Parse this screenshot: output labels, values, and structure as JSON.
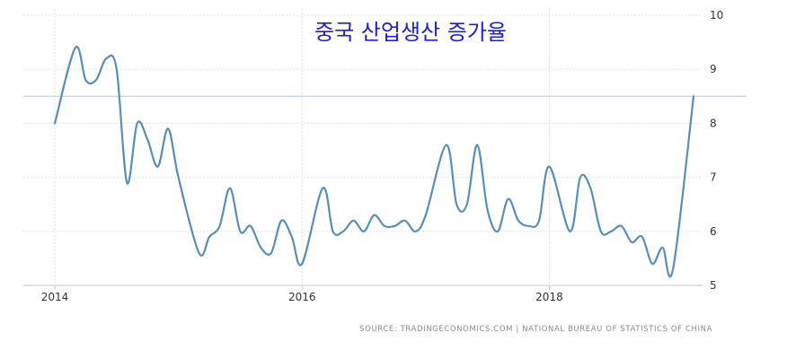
{
  "chart_data": {
    "type": "line",
    "title": "중국 산업생산 증가율",
    "source": "SOURCE: TRADINGECONOMICS.COM  |  NATIONAL BUREAU OF STATISTICS OF CHINA",
    "xlabel": "",
    "ylabel": "",
    "x_ticks": [
      "2014",
      "2016",
      "2018"
    ],
    "y_ticks": [
      "5",
      "6",
      "7",
      "8",
      "9",
      "10"
    ],
    "ylim": [
      5,
      10
    ],
    "xlim": [
      "2014-01",
      "2019-03"
    ],
    "grid": true,
    "reference_line": 8.5,
    "series": [
      {
        "x": [
          "2014-01",
          "2014-03",
          "2014-04",
          "2014-05",
          "2014-06",
          "2014-07",
          "2014-08",
          "2014-09",
          "2014-10",
          "2014-11",
          "2014-12",
          "2015-01",
          "2015-03",
          "2015-04",
          "2015-05",
          "2015-06",
          "2015-07",
          "2015-08",
          "2015-09",
          "2015-10",
          "2015-11",
          "2015-12",
          "2016-01",
          "2016-03",
          "2016-04",
          "2016-05",
          "2016-06",
          "2016-07",
          "2016-08",
          "2016-09",
          "2016-10",
          "2016-11",
          "2016-12",
          "2017-01",
          "2017-03",
          "2017-04",
          "2017-05",
          "2017-06",
          "2017-07",
          "2017-08",
          "2017-09",
          "2017-10",
          "2017-11",
          "2017-12",
          "2018-01",
          "2018-03",
          "2018-04",
          "2018-05",
          "2018-06",
          "2018-07",
          "2018-08",
          "2018-09",
          "2018-10",
          "2018-11",
          "2018-12",
          "2019-01",
          "2019-03"
        ],
        "values": [
          8.0,
          9.4,
          8.8,
          8.8,
          9.2,
          9.0,
          6.9,
          8.0,
          7.7,
          7.2,
          7.9,
          7.0,
          5.6,
          5.9,
          6.1,
          6.8,
          6.0,
          6.1,
          5.7,
          5.6,
          6.2,
          5.9,
          5.4,
          6.8,
          6.0,
          6.0,
          6.2,
          6.0,
          6.3,
          6.1,
          6.1,
          6.2,
          6.0,
          6.3,
          7.6,
          6.5,
          6.5,
          7.6,
          6.4,
          6.0,
          6.6,
          6.2,
          6.1,
          6.2,
          7.2,
          6.0,
          7.0,
          6.8,
          6.0,
          6.0,
          6.1,
          5.8,
          5.9,
          5.4,
          5.7,
          5.3,
          8.5
        ]
      }
    ]
  }
}
